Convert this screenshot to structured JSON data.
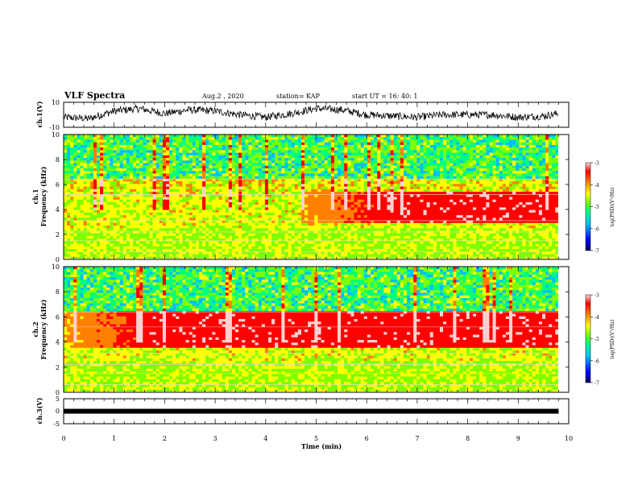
{
  "header": {
    "title": "VLF Spectra",
    "date": "Aug.2  , 2020",
    "station": "station= KAP",
    "start": "start  UT  =    16: 40: 1"
  },
  "chart_data": [
    {
      "type": "line",
      "panel": "ch1-waveform",
      "ylabel": "ch.1(V)",
      "xlim": [
        0,
        10
      ],
      "ylim": [
        -10,
        10
      ],
      "yticks": [
        "10",
        "-10"
      ],
      "envelope": {
        "x": [
          0,
          0.5,
          1,
          1.5,
          2,
          2.5,
          3,
          3.5,
          4,
          4.5,
          5,
          5.5,
          6,
          6.5,
          7,
          7.5,
          8,
          8.5,
          9,
          9.5,
          9.8
        ],
        "y": [
          -2,
          -3,
          3,
          5,
          1,
          4,
          3,
          0,
          -2,
          1,
          5,
          4,
          0,
          -1,
          -2,
          0,
          0,
          0,
          -2,
          -1,
          1
        ]
      }
    },
    {
      "type": "heatmap",
      "panel": "ch1-spectrogram",
      "ylabel_lines": [
        "ch.1",
        "Frequency  (kHz)"
      ],
      "yticks": [
        "0",
        "2",
        "4",
        "6",
        "8",
        "10"
      ],
      "ylim": [
        0,
        10
      ],
      "xlim": [
        0,
        10
      ],
      "colorbar": {
        "ticks": [
          "-3",
          "-4",
          "-5",
          "-6",
          "-7"
        ],
        "label": "log(PSD)(V²/Hz)",
        "range": [
          -7,
          -3
        ]
      },
      "red_band_khz": [
        3,
        5.5
      ],
      "red_band_starts_min": 4.7
    },
    {
      "type": "heatmap",
      "panel": "ch2-spectrogram",
      "ylabel_lines": [
        "ch.2",
        "Frequency  (kHz)"
      ],
      "yticks": [
        "0",
        "2",
        "4",
        "6",
        "8",
        "10"
      ],
      "ylim": [
        0,
        10
      ],
      "xlim": [
        0,
        10
      ],
      "colorbar": {
        "ticks": [
          "-3",
          "-4",
          "-5",
          "-6",
          "-7"
        ],
        "label": "log(PSD)(V²/Hz)",
        "range": [
          -7,
          -3
        ]
      },
      "red_band_khz": [
        3.5,
        6.5
      ],
      "red_band_starts_min": 0
    },
    {
      "type": "line",
      "panel": "ch3-waveform",
      "ylabel": "ch.3(V)",
      "yticks": [
        "5",
        "0",
        "-5"
      ],
      "ylim": [
        -5,
        5
      ],
      "xlim": [
        0,
        10
      ],
      "x": [
        0,
        9.8
      ],
      "y": [
        0,
        0
      ]
    }
  ],
  "xaxis": {
    "label": "Time  (min)",
    "ticks": [
      "0",
      "1",
      "2",
      "3",
      "4",
      "5",
      "6",
      "7",
      "8",
      "9",
      "10"
    ]
  },
  "colors": {
    "scale": [
      "#000080",
      "#0000ff",
      "#00bfff",
      "#00ff7f",
      "#7fff00",
      "#ffff00",
      "#ff8000",
      "#ff0000",
      "#ffd0d0"
    ]
  }
}
